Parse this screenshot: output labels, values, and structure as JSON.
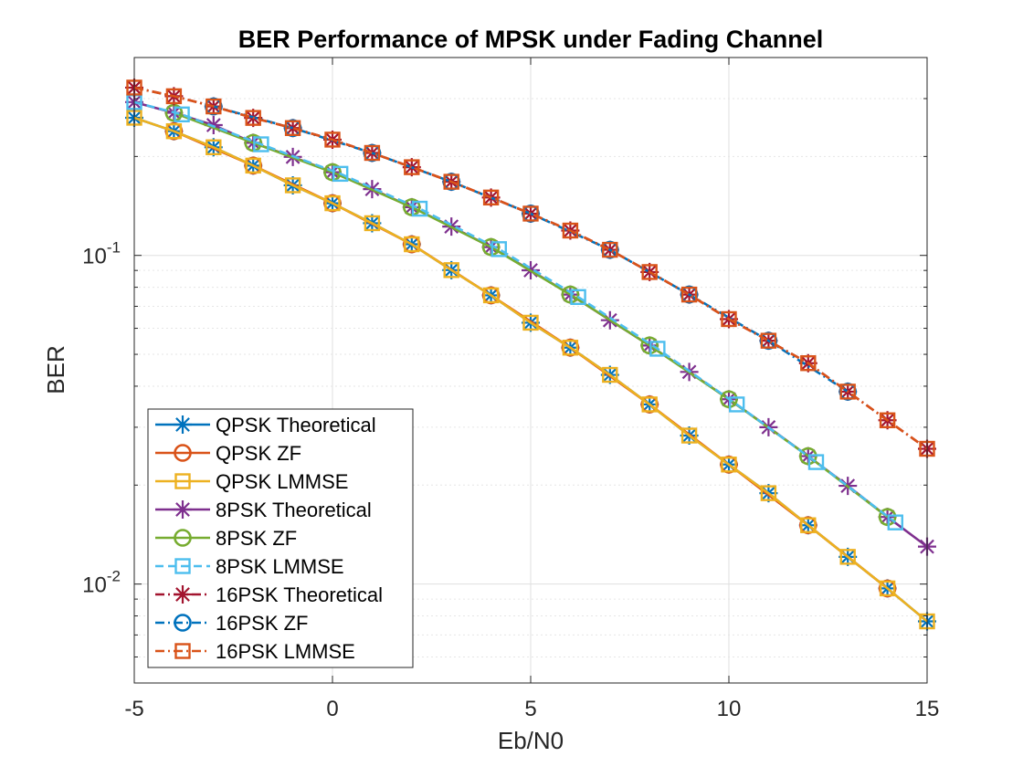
{
  "chart_data": {
    "type": "line",
    "title": "BER Performance of MPSK under Fading Channel",
    "xlabel": "Eb/N0",
    "ylabel": "BER",
    "xlim": [
      -5,
      15
    ],
    "ylim": [
      0.005,
      0.4
    ],
    "yscale": "log",
    "grid": true,
    "legend_position": "bottom-left",
    "x_ticks": [
      {
        "value": -5,
        "label": "-5"
      },
      {
        "value": 0,
        "label": "0"
      },
      {
        "value": 5,
        "label": "5"
      },
      {
        "value": 10,
        "label": "10"
      },
      {
        "value": 15,
        "label": "15"
      }
    ],
    "y_ticks": [
      {
        "value": 0.01,
        "base": "10",
        "exp": "-2"
      },
      {
        "value": 0.1,
        "base": "10",
        "exp": "-1"
      }
    ],
    "series": [
      {
        "name": "QPSK Theoretical",
        "color": "#0072BD",
        "marker": "asterisk",
        "dash": "solid",
        "x": [
          -5,
          -4,
          -3,
          -2,
          -1,
          0,
          1,
          2,
          3,
          4,
          5,
          6,
          7,
          8,
          9,
          10,
          11,
          12,
          13,
          14,
          15
        ],
        "y": [
          0.2623,
          0.2387,
          0.2133,
          0.1876,
          0.1634,
          0.1441,
          0.1253,
          0.1081,
          0.0902,
          0.0756,
          0.0624,
          0.0524,
          0.0433,
          0.0352,
          0.0283,
          0.0231,
          0.0189,
          0.0151,
          0.0121,
          0.0097,
          0.0077
        ]
      },
      {
        "name": "QPSK ZF",
        "color": "#D95319",
        "marker": "circle",
        "dash": "solid",
        "x": [
          -4,
          -2,
          0,
          2,
          4,
          6,
          8,
          10,
          12,
          14
        ],
        "y": [
          0.2387,
          0.1876,
          0.1441,
          0.1081,
          0.0756,
          0.0524,
          0.0352,
          0.0231,
          0.0151,
          0.0097
        ]
      },
      {
        "name": "QPSK LMMSE",
        "color": "#EDB120",
        "marker": "square",
        "dash": "solid",
        "x": [
          -5,
          -4,
          -3,
          -2,
          -1,
          0,
          1,
          2,
          3,
          4,
          5,
          6,
          7,
          8,
          9,
          10,
          11,
          12,
          13,
          14,
          15
        ],
        "y": [
          0.2623,
          0.2387,
          0.2133,
          0.1876,
          0.1634,
          0.1441,
          0.1253,
          0.1081,
          0.0902,
          0.0756,
          0.0624,
          0.0524,
          0.0433,
          0.0352,
          0.0283,
          0.0231,
          0.0189,
          0.0151,
          0.0121,
          0.0097,
          0.0077
        ]
      },
      {
        "name": "8PSK Theoretical",
        "color": "#7E2F8E",
        "marker": "asterisk",
        "dash": "solid",
        "x": [
          -5,
          -4,
          -3,
          -2,
          -1,
          0,
          1,
          2,
          3,
          4,
          5,
          6,
          7,
          8,
          9,
          10,
          11,
          12,
          13,
          14,
          15
        ],
        "y": [
          0.2927,
          0.2715,
          0.2491,
          0.2201,
          0.1994,
          0.1791,
          0.1591,
          0.1402,
          0.1224,
          0.106,
          0.0901,
          0.076,
          0.0635,
          0.0532,
          0.0442,
          0.0365,
          0.03,
          0.0245,
          0.0199,
          0.016,
          0.013
        ]
      },
      {
        "name": "8PSK ZF",
        "color": "#77AC30",
        "marker": "circle",
        "dash": "solid",
        "x": [
          -4,
          -2,
          0,
          2,
          4,
          6,
          8,
          10,
          12,
          14
        ],
        "y": [
          0.2715,
          0.2201,
          0.1791,
          0.1402,
          0.106,
          0.076,
          0.0532,
          0.0365,
          0.0245,
          0.016
        ]
      },
      {
        "name": "8PSK LMMSE",
        "color": "#4DBEEE",
        "marker": "square",
        "dash": "dash",
        "x": [
          -5,
          -3.8,
          -1.8,
          0.2,
          2.2,
          4.2,
          6.2,
          8.2,
          10.2,
          12.2,
          14.2
        ],
        "y": [
          0.2927,
          0.2685,
          0.2178,
          0.1771,
          0.1387,
          0.1045,
          0.0747,
          0.052,
          0.0352,
          0.0235,
          0.0154
        ]
      },
      {
        "name": "16PSK Theoretical",
        "color": "#A2142F",
        "marker": "asterisk",
        "dash": "dashdot",
        "x": [
          -5,
          -4,
          -3,
          -2,
          -1,
          0,
          1,
          2,
          3,
          4,
          5,
          6,
          7,
          8,
          9,
          10,
          11,
          12,
          13,
          14,
          15
        ],
        "y": [
          0.324,
          0.305,
          0.284,
          0.262,
          0.244,
          0.225,
          0.205,
          0.1855,
          0.1675,
          0.15,
          0.134,
          0.119,
          0.104,
          0.089,
          0.076,
          0.064,
          0.055,
          0.047,
          0.0385,
          0.0315,
          0.0258
        ]
      },
      {
        "name": "16PSK ZF",
        "color": "#0072BD",
        "marker": "circle",
        "dash": "dashdot",
        "x": [
          -3,
          -1,
          1,
          3,
          5,
          7,
          9,
          11,
          13
        ],
        "y": [
          0.284,
          0.244,
          0.205,
          0.1675,
          0.134,
          0.104,
          0.076,
          0.055,
          0.0385
        ]
      },
      {
        "name": "16PSK LMMSE",
        "color": "#D95319",
        "marker": "square",
        "dash": "dashdot",
        "x": [
          -5,
          -4,
          -3,
          -2,
          -1,
          0,
          1,
          2,
          3,
          4,
          5,
          6,
          7,
          8,
          9,
          10,
          11,
          12,
          13,
          14,
          15
        ],
        "y": [
          0.324,
          0.305,
          0.284,
          0.262,
          0.244,
          0.225,
          0.205,
          0.1855,
          0.1675,
          0.15,
          0.134,
          0.119,
          0.104,
          0.089,
          0.076,
          0.064,
          0.055,
          0.047,
          0.0385,
          0.0315,
          0.0258
        ]
      }
    ]
  }
}
